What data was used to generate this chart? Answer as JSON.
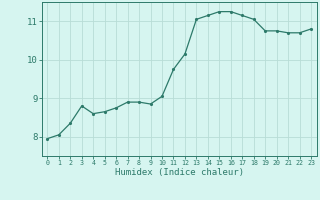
{
  "x": [
    0,
    1,
    2,
    3,
    4,
    5,
    6,
    7,
    8,
    9,
    10,
    11,
    12,
    13,
    14,
    15,
    16,
    17,
    18,
    19,
    20,
    21,
    22,
    23
  ],
  "y": [
    7.95,
    8.05,
    8.35,
    8.8,
    8.6,
    8.65,
    8.75,
    8.9,
    8.9,
    8.85,
    9.05,
    9.75,
    10.15,
    11.05,
    11.15,
    11.25,
    11.25,
    11.15,
    11.05,
    10.75,
    10.75,
    10.7,
    10.7,
    10.8
  ],
  "xlabel": "Humidex (Indice chaleur)",
  "ylim": [
    7.5,
    11.5
  ],
  "xlim": [
    -0.5,
    23.5
  ],
  "yticks": [
    8,
    9,
    10,
    11
  ],
  "xticks": [
    0,
    1,
    2,
    3,
    4,
    5,
    6,
    7,
    8,
    9,
    10,
    11,
    12,
    13,
    14,
    15,
    16,
    17,
    18,
    19,
    20,
    21,
    22,
    23
  ],
  "line_color": "#2d7a6a",
  "marker_color": "#2d7a6a",
  "bg_color": "#d6f5f0",
  "grid_color": "#b8ddd6",
  "axis_color": "#2d7a6a",
  "tick_label_color": "#2d7a6a",
  "xlabel_color": "#2d7a6a"
}
